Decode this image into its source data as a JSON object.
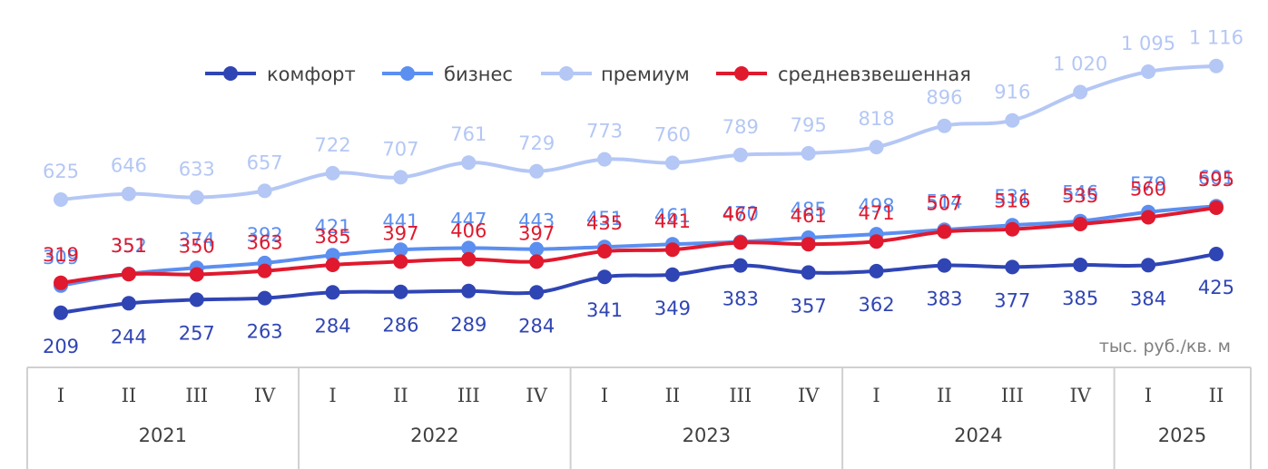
{
  "chart_data": {
    "type": "line",
    "unit_label": "тыс. руб./кв. м",
    "categories": [
      "I",
      "II",
      "III",
      "IV",
      "I",
      "II",
      "III",
      "IV",
      "I",
      "II",
      "III",
      "IV",
      "I",
      "II",
      "III",
      "IV",
      "I",
      "II"
    ],
    "years": [
      {
        "label": "2021",
        "span": 4
      },
      {
        "label": "2022",
        "span": 4
      },
      {
        "label": "2023",
        "span": 4
      },
      {
        "label": "2024",
        "span": 4
      },
      {
        "label": "2025",
        "span": 2
      }
    ],
    "series": [
      {
        "name": "комфорт",
        "color": "#3045b4",
        "label_pos": "below",
        "values": [
          209,
          244,
          257,
          263,
          284,
          286,
          289,
          284,
          341,
          349,
          383,
          357,
          362,
          383,
          377,
          385,
          384,
          425
        ],
        "labels": [
          "209",
          "244",
          "257",
          "263",
          "284",
          "286",
          "289",
          "284",
          "341",
          "349",
          "383",
          "357",
          "362",
          "383",
          "377",
          "385",
          "384",
          "425"
        ]
      },
      {
        "name": "бизнес",
        "color": "#5b8ff0",
        "label_pos": "above",
        "values": [
          309,
          352,
          374,
          392,
          421,
          441,
          447,
          443,
          451,
          461,
          470,
          485,
          498,
          514,
          531,
          546,
          579,
          601
        ],
        "labels": [
          "309",
          "352",
          "374",
          "392",
          "421",
          "441",
          "447",
          "443",
          "451",
          "461",
          "470",
          "485",
          "498",
          "514",
          "531",
          "546",
          "579",
          "601"
        ]
      },
      {
        "name": "премиум",
        "color": "#b4c7f5",
        "label_pos": "above",
        "values": [
          625,
          646,
          633,
          657,
          722,
          707,
          761,
          729,
          773,
          760,
          789,
          795,
          818,
          896,
          916,
          1020,
          1095,
          1116
        ],
        "labels": [
          "625",
          "646",
          "633",
          "657",
          "722",
          "707",
          "761",
          "729",
          "773",
          "760",
          "789",
          "795",
          "818",
          "896",
          "916",
          "1 020",
          "1 095",
          "1 116"
        ]
      },
      {
        "name": "средневзвешенная",
        "color": "#e0192e",
        "label_pos": "above",
        "values": [
          319,
          351,
          350,
          363,
          385,
          397,
          406,
          397,
          435,
          441,
          467,
          461,
          471,
          507,
          516,
          535,
          560,
          595
        ],
        "labels": [
          "319",
          "351",
          "350",
          "363",
          "385",
          "397",
          "406",
          "397",
          "435",
          "441",
          "467",
          "461",
          "471",
          "507",
          "516",
          "535",
          "560",
          "595"
        ]
      }
    ]
  }
}
